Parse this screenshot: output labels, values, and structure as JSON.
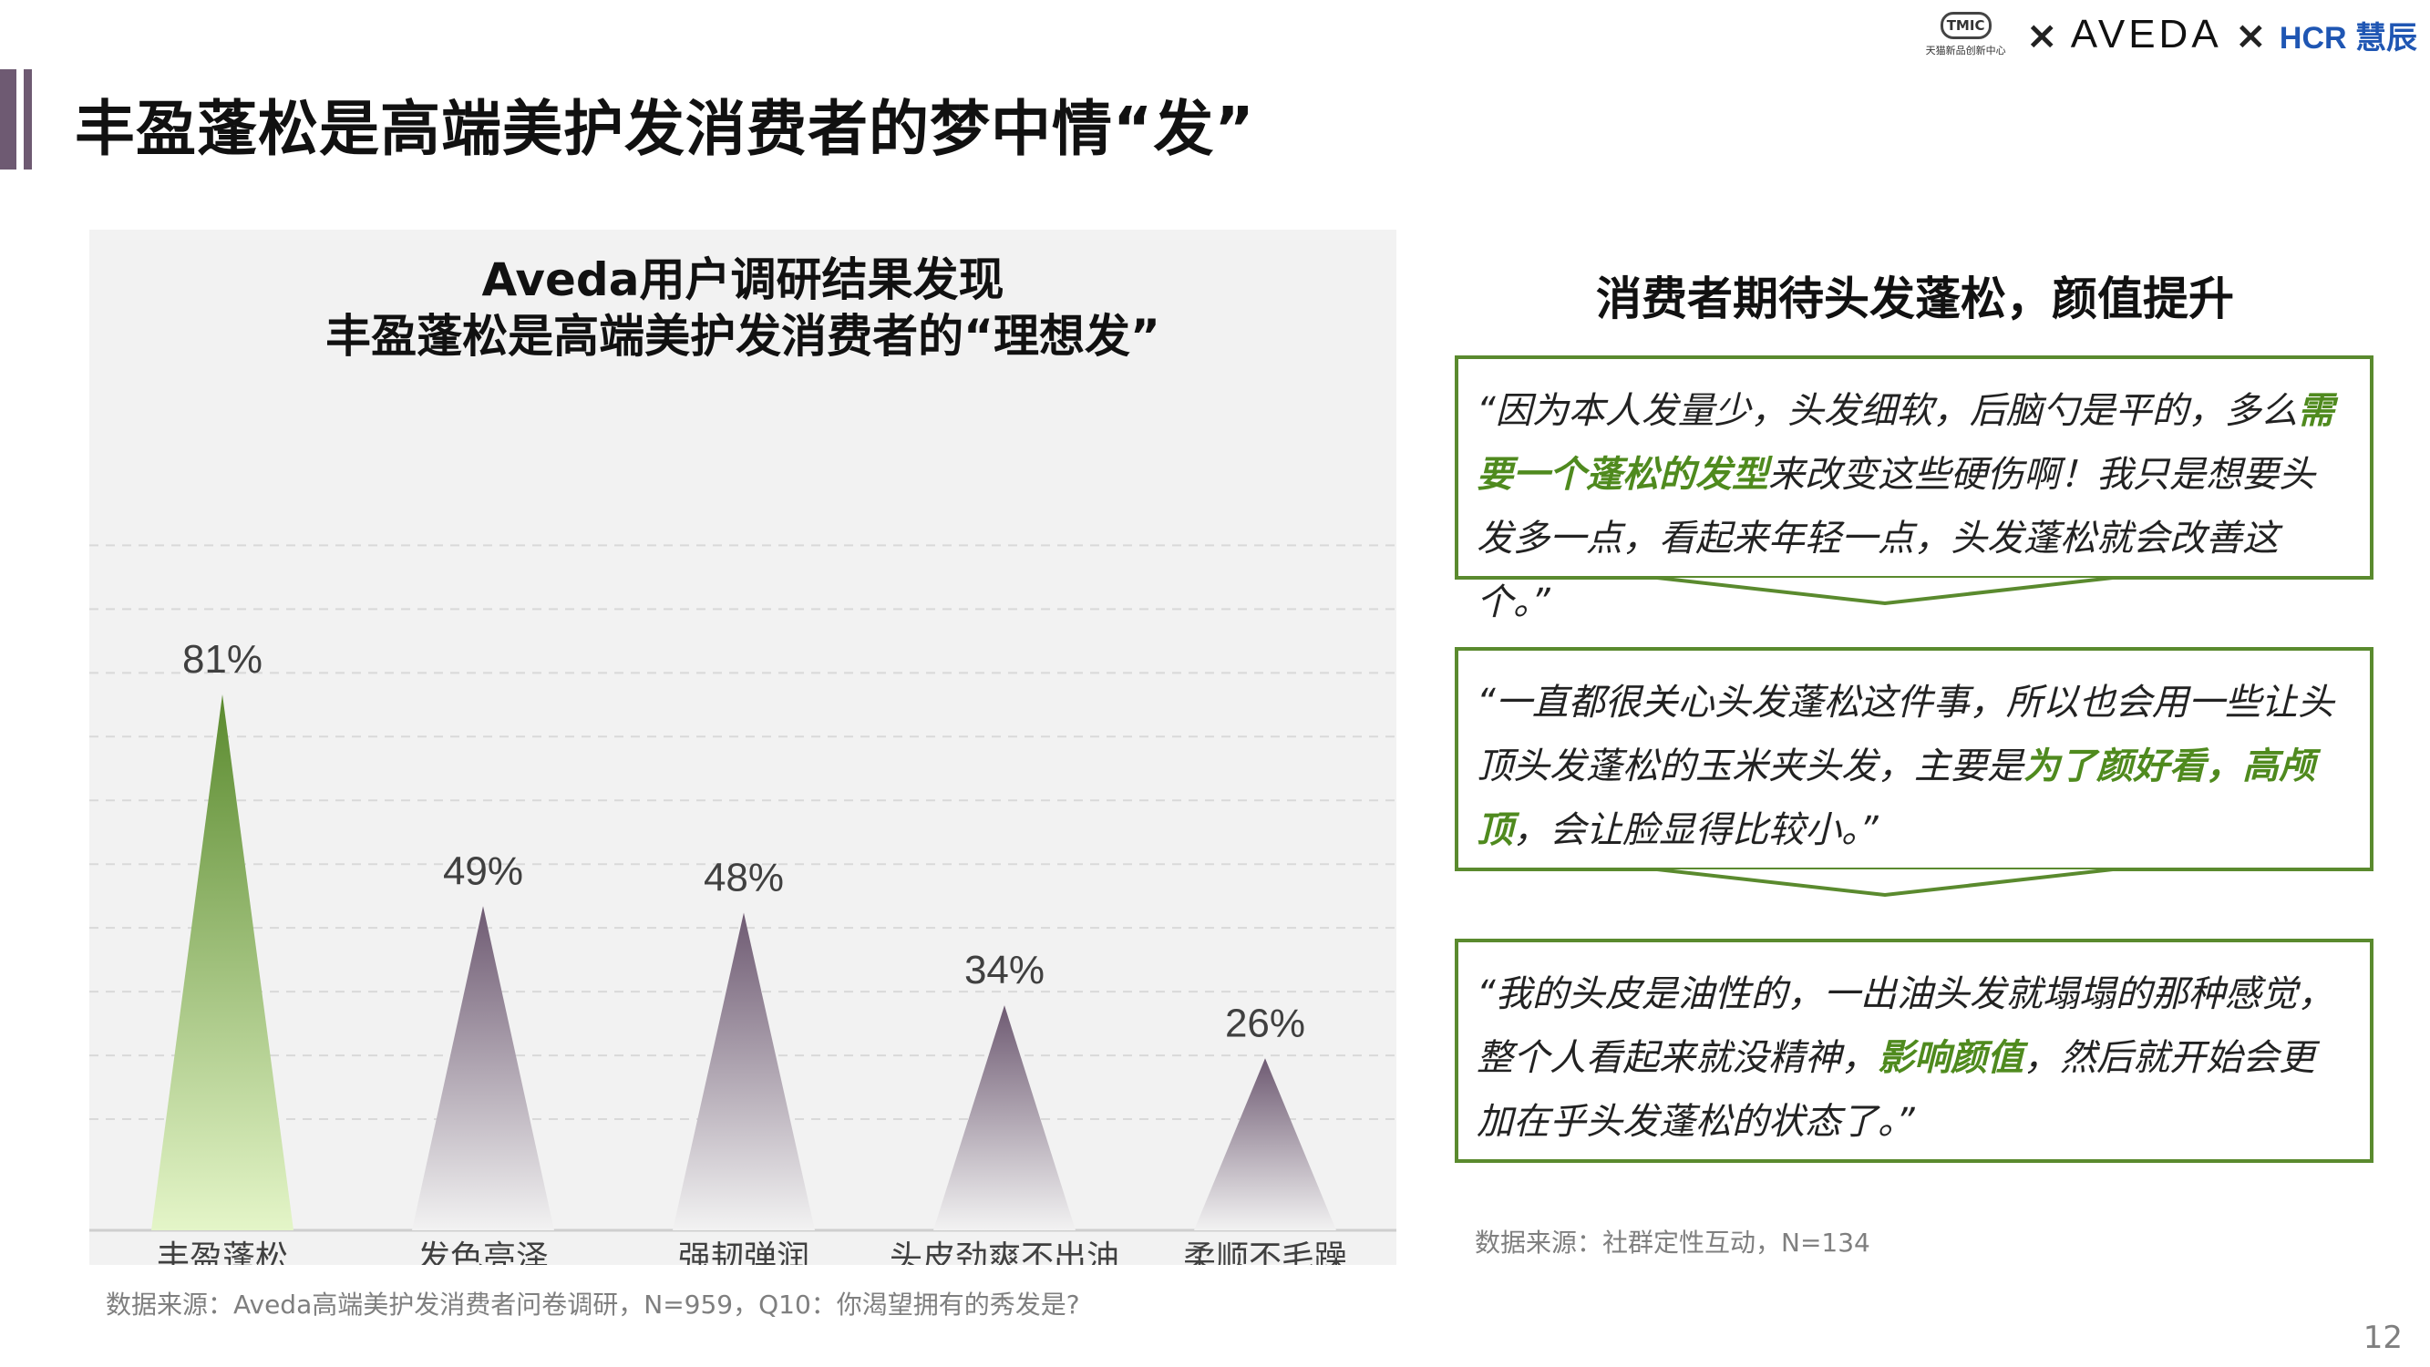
{
  "header": {
    "title": "丰盈蓬松是高端美护发消费者的梦中情“发”",
    "logos": {
      "tmic_badge": "TMIC",
      "tmic_sub": "天猫新品创新中心",
      "separator": "×",
      "aveda": "AVEDA",
      "hcr": "HCR 慧辰"
    }
  },
  "chart_data": {
    "type": "bar",
    "title_lines": [
      "Aveda用户调研结果发现",
      "丰盈蓬松是高端美护发消费者的“理想发”"
    ],
    "categories": [
      "丰盈蓬松",
      "发色亮泽",
      "强韧弹润",
      "头皮劲爽不出油",
      "柔顺不毛躁"
    ],
    "values": [
      81,
      49,
      48,
      34,
      26
    ],
    "value_labels": [
      "81%",
      "49%",
      "48%",
      "34%",
      "26%"
    ],
    "unit": "%",
    "ylim": [
      0,
      100
    ],
    "grid": true,
    "colors": {
      "highlight_top": "#5a8a2e",
      "highlight_bottom": "#e4f5c8",
      "normal_top": "#6e5a72",
      "normal_bottom": "#f2f2f2"
    }
  },
  "chart_source": "数据来源：Aveda高端美护发消费者问卷调研，N=959，Q10：你渴望拥有的秀发是?",
  "quotes": {
    "title": "消费者期待头发蓬松，颜值提升",
    "items": [
      {
        "segments": [
          {
            "text": "“因为本人发量少，头发细软，后脑勺是平的，多么",
            "hl": false
          },
          {
            "text": "需要一个蓬松的发型",
            "hl": true
          },
          {
            "text": "来改变这些硬伤啊！我只是想要头发多一点，看起来年轻一点，头发蓬松就会改善这个。”",
            "hl": false
          }
        ]
      },
      {
        "segments": [
          {
            "text": "“一直都很关心头发蓬松这件事，所以也会用一些让头顶头发蓬松的玉米夹头发，主要是",
            "hl": false
          },
          {
            "text": "为了颜好看，高颅顶",
            "hl": true
          },
          {
            "text": "，会让脸显得比较小。”",
            "hl": false
          }
        ]
      },
      {
        "segments": [
          {
            "text": "“我的头皮是油性的，一出油头发就塌塌的那种感觉，整个人看起来就没精神，",
            "hl": false
          },
          {
            "text": "影响颜值",
            "hl": true
          },
          {
            "text": "，然后就开始会更加在乎头发蓬松的状态了。”",
            "hl": false
          }
        ]
      }
    ],
    "source": "数据来源：社群定性互动，N=134",
    "border_color": "#5a8a2e",
    "highlight_color": "#4f8a1e"
  },
  "page_number": "12"
}
